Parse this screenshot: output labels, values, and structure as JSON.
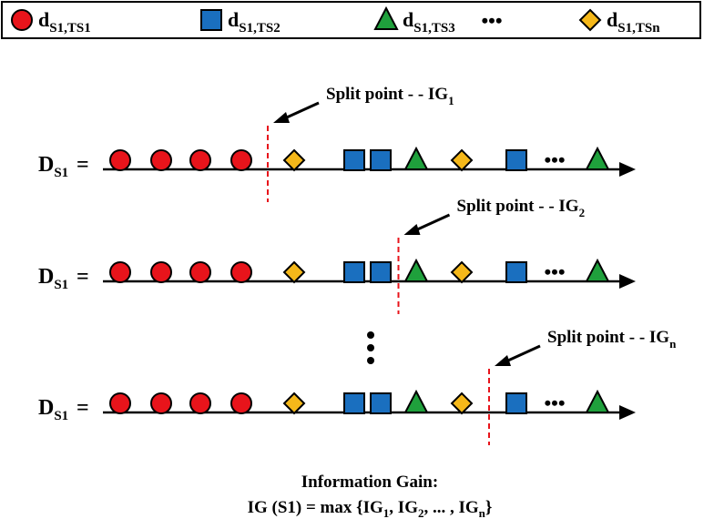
{
  "legend": {
    "items": [
      {
        "base": "d",
        "sub": "S1,TS1",
        "shape": "circle",
        "color": "#e8141b"
      },
      {
        "base": "d",
        "sub": "S1,TS2",
        "shape": "square",
        "color": "#1a6fbf"
      },
      {
        "base": "d",
        "sub": "S1,TS3",
        "shape": "triangle",
        "color": "#1fa03c"
      },
      {
        "base": "d",
        "sub": "S1,TSn",
        "shape": "diamond",
        "color": "#f5b81a"
      }
    ],
    "ellipsis": "•••"
  },
  "sequence": [
    "circle",
    "circle",
    "circle",
    "circle",
    "diamond",
    "square",
    "square",
    "triangle",
    "diamond",
    "square",
    "ellipsis",
    "triangle"
  ],
  "rows": [
    {
      "label_base": "D",
      "label_sub": "S1",
      "equals": "=",
      "split_text": "Split point - -  IG",
      "split_sub": "1",
      "split_after_index": 3
    },
    {
      "label_base": "D",
      "label_sub": "S1",
      "equals": "=",
      "split_text": "Split point - -  IG",
      "split_sub": "2",
      "split_after_index": 6
    },
    {
      "label_base": "D",
      "label_sub": "S1",
      "equals": "=",
      "split_text": "Split point - -  IG",
      "split_sub": "n",
      "split_after_index": 8
    }
  ],
  "vertical_ellipsis": "⋮",
  "footer": {
    "line1": "Information Gain:",
    "line2_prefix": "IG (S1) = max {IG",
    "s1": "1",
    "mid1": ", IG",
    "s2": "2",
    "mid2": ", ... , IG",
    "sn": "n",
    "suffix": "}"
  },
  "colors": {
    "split_line": "#e8141b",
    "stroke": "#000000"
  }
}
